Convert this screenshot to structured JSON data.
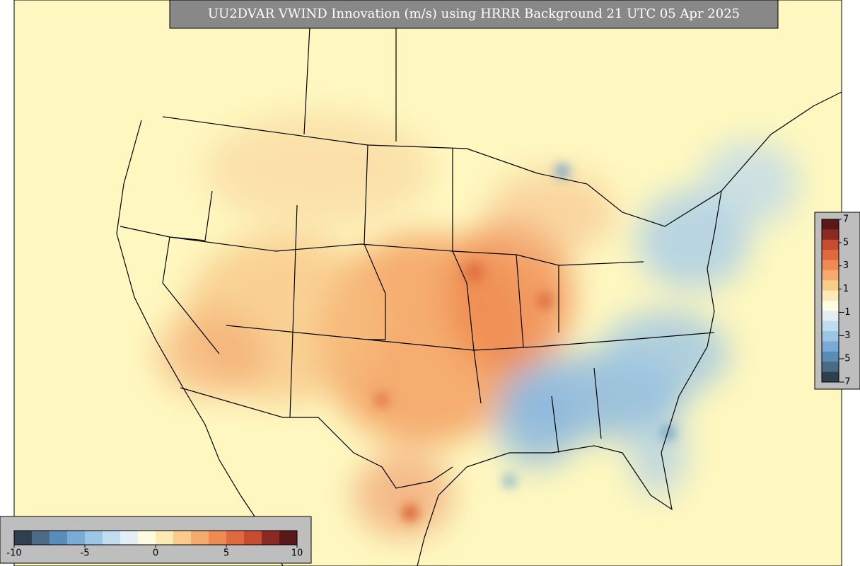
{
  "title": "UU2DVAR VWIND Innovation (m/s) using HRRR Background 21 UTC 05 Apr 2025",
  "colorbar_bottom": {
    "tick_labels": [
      "-10",
      "-5",
      "0",
      "5",
      "10"
    ]
  },
  "colorbar_right": {
    "tick_labels": [
      "7",
      "5",
      "3",
      "1",
      "-1",
      "-3",
      "-5",
      "-7"
    ]
  }
}
